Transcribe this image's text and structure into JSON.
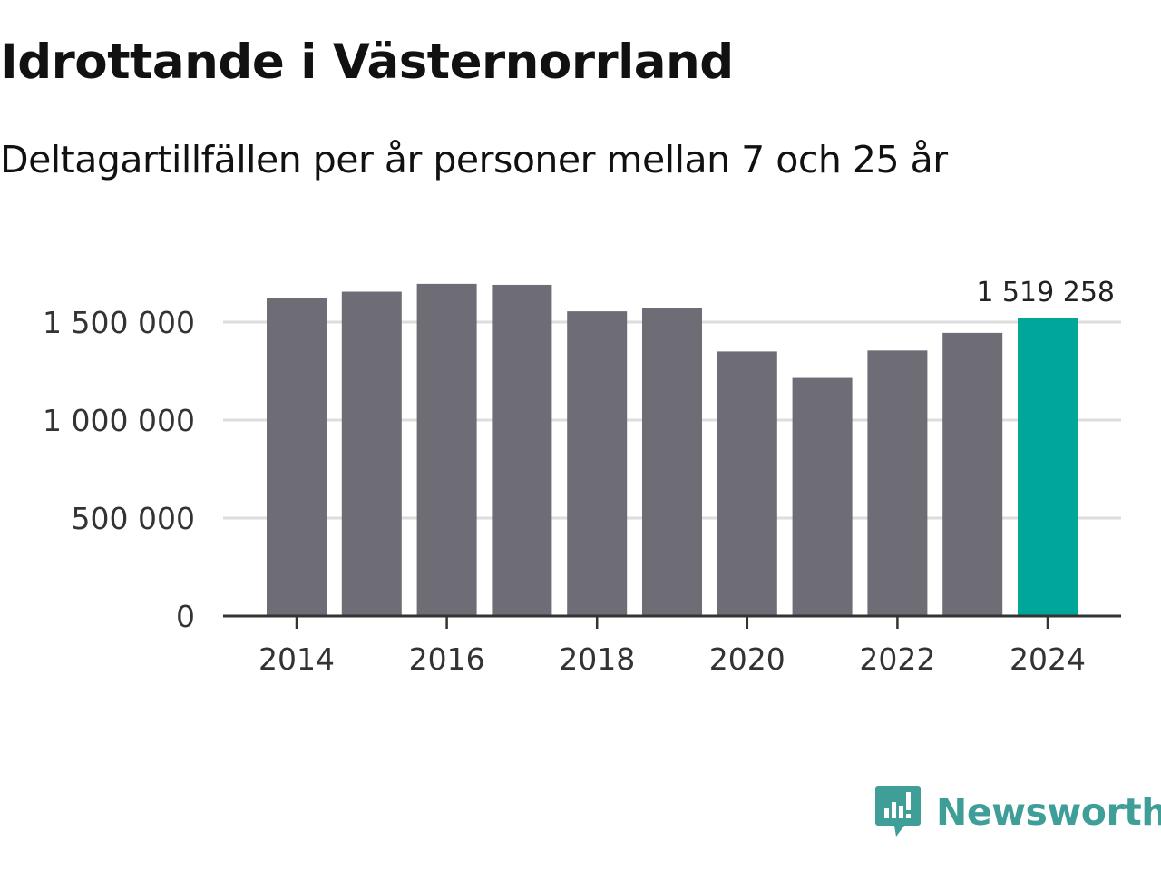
{
  "header": {
    "title": "Idrottande i Västernorrland",
    "subtitle": "Deltagartillfällen per år personer mellan 7 och 25 år"
  },
  "brand": {
    "name": "Newsworthy",
    "logo_icon": "bar-chart-speech-bubble-icon",
    "color": "#3f9f98"
  },
  "colors": {
    "bar": "#6e6d76",
    "highlight": "#00a699",
    "gridline": "#dddddd",
    "axis": "#333333"
  },
  "chart_data": {
    "type": "bar",
    "title": "Idrottande i Västernorrland",
    "subtitle": "Deltagartillfällen per år personer mellan 7 och 25 år",
    "xlabel": "",
    "ylabel": "",
    "categories": [
      "2014",
      "2015",
      "2016",
      "2017",
      "2018",
      "2019",
      "2020",
      "2021",
      "2022",
      "2023",
      "2024"
    ],
    "values": [
      1625000,
      1655000,
      1695000,
      1690000,
      1555000,
      1570000,
      1350000,
      1215000,
      1355000,
      1445000,
      1519258
    ],
    "highlight_index": 10,
    "highlight_label": "1 519 258",
    "ylim": [
      0,
      1700000
    ],
    "yticks": [
      0,
      500000,
      1000000,
      1500000
    ],
    "ytick_labels": [
      "0",
      "500 000",
      "1 000 000",
      "1 500 000"
    ],
    "xticks": [
      "2014",
      "2016",
      "2018",
      "2020",
      "2022",
      "2024"
    ],
    "grid": true
  }
}
